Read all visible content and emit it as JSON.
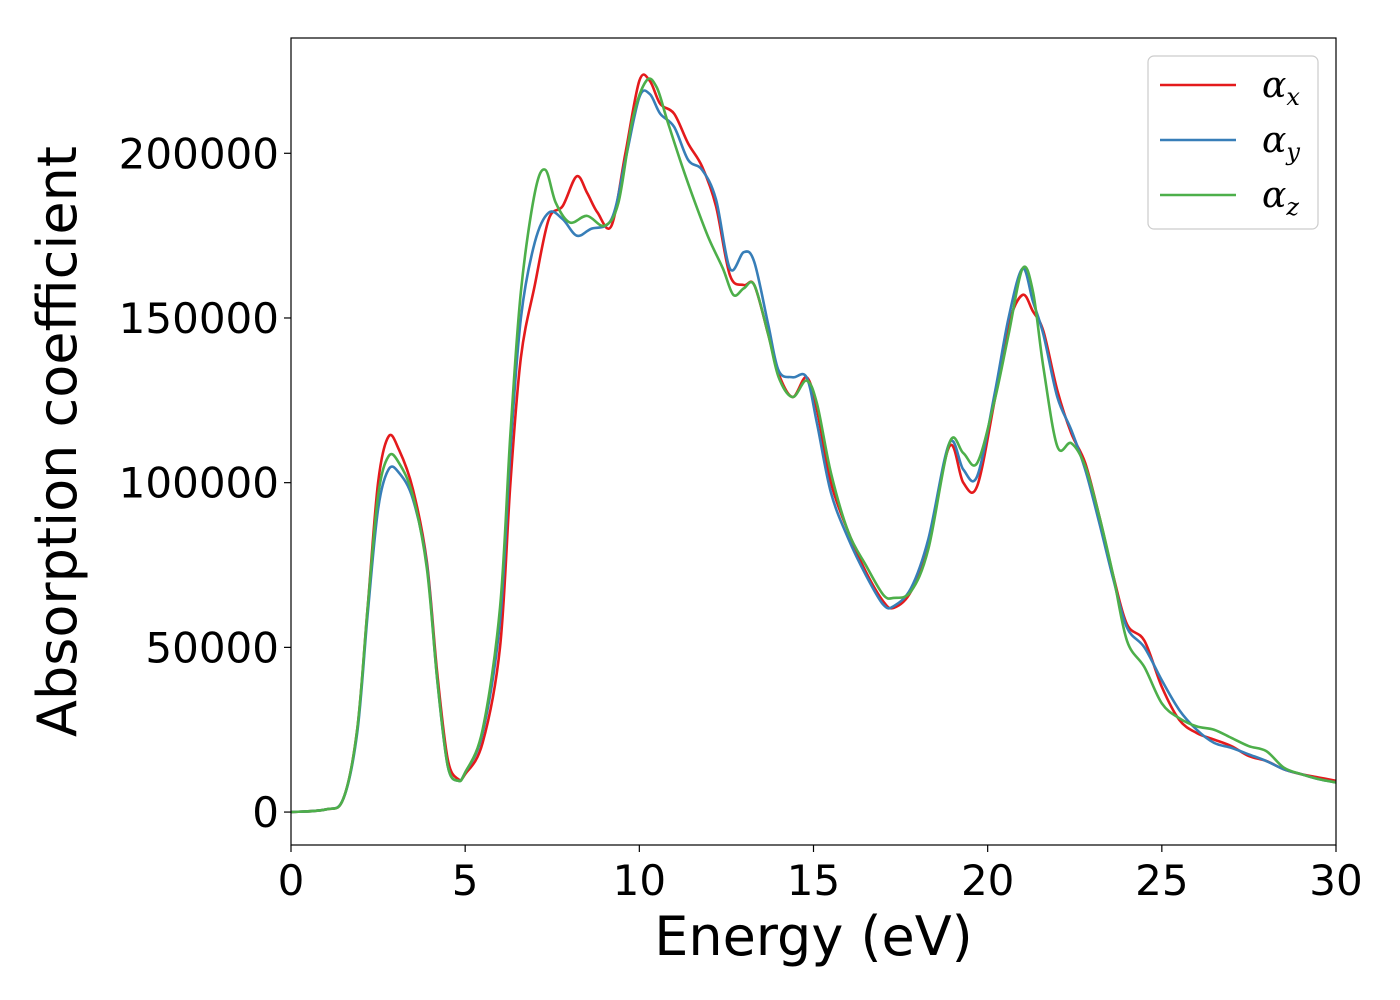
{
  "chart_data": {
    "type": "line",
    "title": "",
    "xlabel": "Energy (eV)",
    "ylabel": "Absorption coefficient",
    "xlim": [
      0,
      30
    ],
    "ylim": [
      -10000,
      235000
    ],
    "xticks": [
      0,
      5,
      10,
      15,
      20,
      25,
      30
    ],
    "yticks": [
      0,
      50000,
      100000,
      150000,
      200000
    ],
    "grid": false,
    "legend_position": "top-right",
    "series": [
      {
        "name": "α_x",
        "symbol": "α",
        "subscript": "x",
        "color": "#e41a1c",
        "points": [
          [
            0,
            0
          ],
          [
            1.0,
            800
          ],
          [
            1.5,
            4000
          ],
          [
            1.9,
            25000
          ],
          [
            2.2,
            62000
          ],
          [
            2.5,
            100000
          ],
          [
            2.8,
            114000
          ],
          [
            3.1,
            110000
          ],
          [
            3.5,
            98000
          ],
          [
            3.9,
            76000
          ],
          [
            4.2,
            42000
          ],
          [
            4.5,
            16000
          ],
          [
            4.8,
            10000
          ],
          [
            5.0,
            11500
          ],
          [
            5.5,
            21000
          ],
          [
            6.0,
            50000
          ],
          [
            6.3,
            100000
          ],
          [
            6.6,
            138000
          ],
          [
            7.0,
            160000
          ],
          [
            7.4,
            180000
          ],
          [
            7.8,
            184000
          ],
          [
            8.2,
            193000
          ],
          [
            8.5,
            188000
          ],
          [
            8.8,
            182000
          ],
          [
            9.2,
            178000
          ],
          [
            9.6,
            200000
          ],
          [
            10.0,
            222000
          ],
          [
            10.3,
            222000
          ],
          [
            10.6,
            215000
          ],
          [
            11.0,
            212000
          ],
          [
            11.4,
            203000
          ],
          [
            11.8,
            196000
          ],
          [
            12.2,
            184000
          ],
          [
            12.6,
            163000
          ],
          [
            13.0,
            160000
          ],
          [
            13.3,
            160000
          ],
          [
            13.7,
            145000
          ],
          [
            14.0,
            133000
          ],
          [
            14.4,
            126000
          ],
          [
            14.8,
            132000
          ],
          [
            15.1,
            122000
          ],
          [
            15.5,
            100000
          ],
          [
            16.0,
            85000
          ],
          [
            16.5,
            73000
          ],
          [
            17.0,
            64000
          ],
          [
            17.3,
            62000
          ],
          [
            17.8,
            67000
          ],
          [
            18.3,
            82000
          ],
          [
            18.9,
            111000
          ],
          [
            19.3,
            100000
          ],
          [
            19.7,
            99000
          ],
          [
            20.2,
            125000
          ],
          [
            20.6,
            148000
          ],
          [
            21.0,
            157000
          ],
          [
            21.3,
            152000
          ],
          [
            21.6,
            146000
          ],
          [
            22.0,
            128000
          ],
          [
            22.4,
            115000
          ],
          [
            22.8,
            106000
          ],
          [
            23.2,
            90000
          ],
          [
            23.6,
            72000
          ],
          [
            24.0,
            57000
          ],
          [
            24.5,
            52000
          ],
          [
            25.0,
            38000
          ],
          [
            25.5,
            28000
          ],
          [
            26.0,
            24000
          ],
          [
            26.5,
            22000
          ],
          [
            27.0,
            20000
          ],
          [
            27.5,
            17000
          ],
          [
            28.0,
            15500
          ],
          [
            28.5,
            13000
          ],
          [
            29.0,
            11500
          ],
          [
            29.5,
            10500
          ],
          [
            30.0,
            9500
          ]
        ]
      },
      {
        "name": "α_y",
        "symbol": "α",
        "subscript": "y",
        "color": "#377eb8",
        "points": [
          [
            0,
            0
          ],
          [
            1.0,
            800
          ],
          [
            1.5,
            4000
          ],
          [
            1.9,
            24000
          ],
          [
            2.2,
            60000
          ],
          [
            2.5,
            92000
          ],
          [
            2.8,
            104000
          ],
          [
            3.1,
            103000
          ],
          [
            3.5,
            95000
          ],
          [
            3.9,
            75000
          ],
          [
            4.2,
            40000
          ],
          [
            4.5,
            14000
          ],
          [
            4.8,
            9500
          ],
          [
            5.0,
            12000
          ],
          [
            5.5,
            24000
          ],
          [
            6.0,
            58000
          ],
          [
            6.3,
            110000
          ],
          [
            6.6,
            150000
          ],
          [
            7.0,
            173000
          ],
          [
            7.4,
            182000
          ],
          [
            7.8,
            180000
          ],
          [
            8.2,
            175000
          ],
          [
            8.6,
            177000
          ],
          [
            9.2,
            180000
          ],
          [
            9.6,
            198000
          ],
          [
            10.0,
            217000
          ],
          [
            10.3,
            218000
          ],
          [
            10.6,
            212000
          ],
          [
            11.0,
            208000
          ],
          [
            11.4,
            198000
          ],
          [
            11.8,
            195000
          ],
          [
            12.2,
            186000
          ],
          [
            12.6,
            165000
          ],
          [
            13.0,
            170000
          ],
          [
            13.3,
            167000
          ],
          [
            13.7,
            148000
          ],
          [
            14.0,
            134000
          ],
          [
            14.4,
            132000
          ],
          [
            14.8,
            132000
          ],
          [
            15.1,
            118000
          ],
          [
            15.5,
            97000
          ],
          [
            16.0,
            83000
          ],
          [
            16.5,
            72000
          ],
          [
            17.0,
            63000
          ],
          [
            17.3,
            62500
          ],
          [
            17.8,
            68000
          ],
          [
            18.3,
            83000
          ],
          [
            18.9,
            112000
          ],
          [
            19.3,
            104000
          ],
          [
            19.7,
            102000
          ],
          [
            20.2,
            127000
          ],
          [
            20.6,
            150000
          ],
          [
            21.0,
            165000
          ],
          [
            21.3,
            155000
          ],
          [
            21.6,
            145000
          ],
          [
            22.0,
            126000
          ],
          [
            22.4,
            116000
          ],
          [
            22.8,
            104000
          ],
          [
            23.2,
            88000
          ],
          [
            23.6,
            71000
          ],
          [
            24.0,
            56000
          ],
          [
            24.5,
            50000
          ],
          [
            25.0,
            40000
          ],
          [
            25.5,
            31000
          ],
          [
            26.0,
            25000
          ],
          [
            26.5,
            21000
          ],
          [
            27.0,
            19500
          ],
          [
            27.5,
            17500
          ],
          [
            28.0,
            15500
          ],
          [
            28.5,
            13000
          ],
          [
            29.0,
            11500
          ],
          [
            29.5,
            10000
          ],
          [
            30.0,
            9000
          ]
        ]
      },
      {
        "name": "α_z",
        "symbol": "α",
        "subscript": "z",
        "color": "#4daf4a",
        "points": [
          [
            0,
            0
          ],
          [
            1.0,
            800
          ],
          [
            1.5,
            4000
          ],
          [
            1.9,
            25000
          ],
          [
            2.2,
            62000
          ],
          [
            2.5,
            96000
          ],
          [
            2.8,
            108000
          ],
          [
            3.1,
            106000
          ],
          [
            3.5,
            96000
          ],
          [
            3.9,
            74000
          ],
          [
            4.2,
            40000
          ],
          [
            4.5,
            14000
          ],
          [
            4.8,
            9500
          ],
          [
            5.0,
            12000
          ],
          [
            5.5,
            25000
          ],
          [
            6.0,
            62000
          ],
          [
            6.3,
            115000
          ],
          [
            6.6,
            158000
          ],
          [
            7.0,
            188000
          ],
          [
            7.3,
            195000
          ],
          [
            7.6,
            185000
          ],
          [
            8.0,
            179000
          ],
          [
            8.5,
            181000
          ],
          [
            9.0,
            178000
          ],
          [
            9.4,
            185000
          ],
          [
            9.8,
            210000
          ],
          [
            10.2,
            222000
          ],
          [
            10.5,
            220000
          ],
          [
            10.8,
            210000
          ],
          [
            11.2,
            197000
          ],
          [
            11.6,
            185000
          ],
          [
            12.0,
            174000
          ],
          [
            12.4,
            165000
          ],
          [
            12.7,
            157000
          ],
          [
            13.0,
            159000
          ],
          [
            13.3,
            160000
          ],
          [
            13.7,
            145000
          ],
          [
            14.0,
            132000
          ],
          [
            14.4,
            126000
          ],
          [
            14.8,
            131000
          ],
          [
            15.1,
            124000
          ],
          [
            15.5,
            103000
          ],
          [
            16.0,
            85000
          ],
          [
            16.5,
            75000
          ],
          [
            17.0,
            66000
          ],
          [
            17.3,
            65000
          ],
          [
            17.8,
            67000
          ],
          [
            18.3,
            80000
          ],
          [
            18.9,
            112000
          ],
          [
            19.3,
            109000
          ],
          [
            19.7,
            106000
          ],
          [
            20.2,
            125000
          ],
          [
            20.6,
            145000
          ],
          [
            21.0,
            165000
          ],
          [
            21.3,
            158000
          ],
          [
            21.6,
            135000
          ],
          [
            22.0,
            111000
          ],
          [
            22.4,
            112000
          ],
          [
            22.8,
            105000
          ],
          [
            23.2,
            90000
          ],
          [
            23.6,
            72000
          ],
          [
            24.0,
            52000
          ],
          [
            24.5,
            44000
          ],
          [
            25.0,
            33000
          ],
          [
            25.5,
            28500
          ],
          [
            26.0,
            26000
          ],
          [
            26.5,
            25000
          ],
          [
            27.0,
            22500
          ],
          [
            27.5,
            20000
          ],
          [
            28.0,
            18500
          ],
          [
            28.5,
            13500
          ],
          [
            29.0,
            11500
          ],
          [
            29.5,
            10000
          ],
          [
            30.0,
            9000
          ]
        ]
      }
    ]
  }
}
